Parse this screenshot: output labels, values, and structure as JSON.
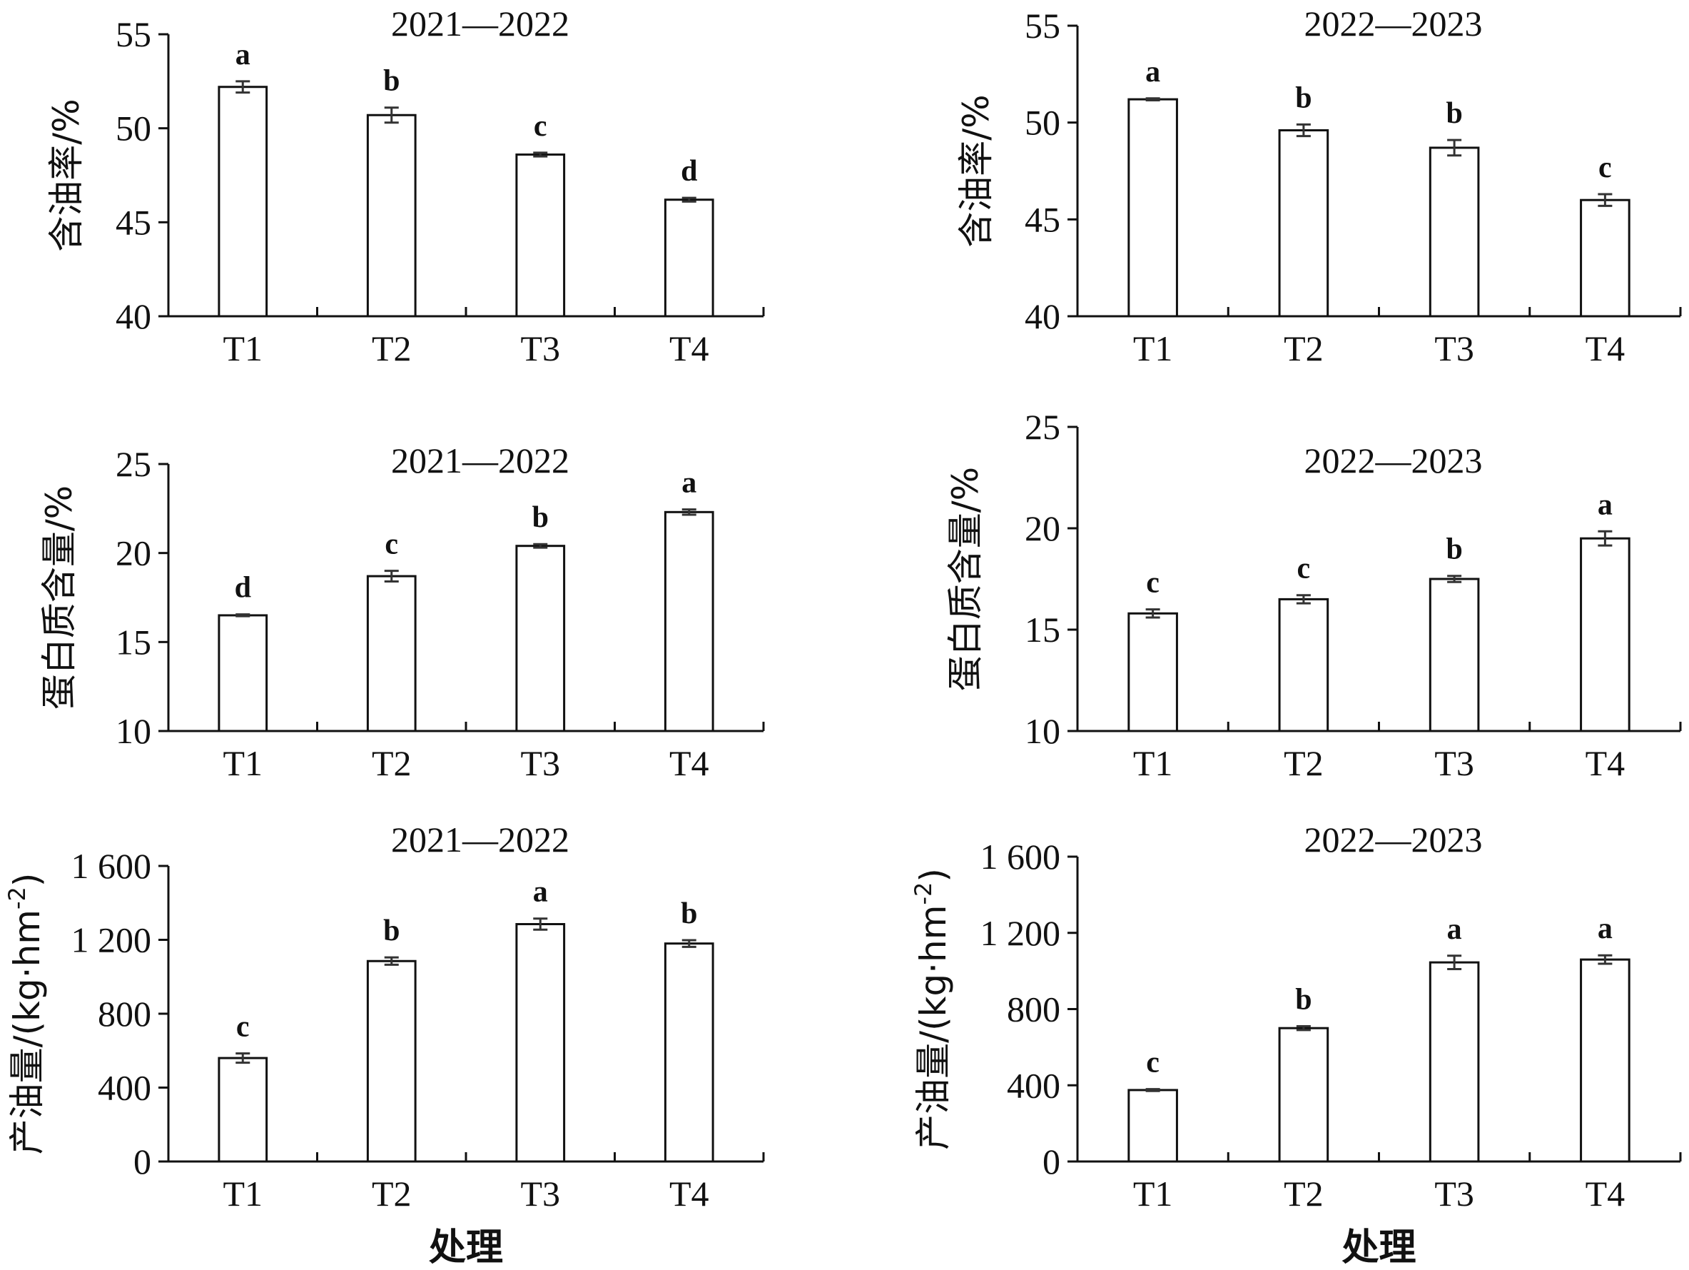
{
  "chart_data": [
    {
      "type": "bar",
      "title": "2021—2022",
      "ylabel": "含油率/%",
      "xlabel": "",
      "categories": [
        "T1",
        "T2",
        "T3",
        "T4"
      ],
      "values": [
        52.2,
        50.7,
        48.6,
        46.2
      ],
      "errors": [
        0.3,
        0.4,
        0.1,
        0.1
      ],
      "letters": [
        "a",
        "b",
        "c",
        "d"
      ],
      "ylim": [
        40,
        55
      ],
      "yticks": [
        40,
        45,
        50,
        55
      ],
      "ytick_labels": [
        "40",
        "45",
        "50",
        "55"
      ]
    },
    {
      "type": "bar",
      "title": "2022—2023",
      "ylabel": "含油率/%",
      "xlabel": "",
      "categories": [
        "T1",
        "T2",
        "T3",
        "T4"
      ],
      "values": [
        51.2,
        49.6,
        48.7,
        46.0
      ],
      "errors": [
        0.05,
        0.3,
        0.4,
        0.3
      ],
      "letters": [
        "a",
        "b",
        "b",
        "c"
      ],
      "ylim": [
        40,
        55
      ],
      "yticks": [
        40,
        45,
        50,
        55
      ],
      "ytick_labels": [
        "40",
        "45",
        "50",
        "55"
      ]
    },
    {
      "type": "bar",
      "title": "2021—2022",
      "ylabel": "蛋白质含量/%",
      "xlabel": "",
      "categories": [
        "T1",
        "T2",
        "T3",
        "T4"
      ],
      "values": [
        16.5,
        18.7,
        20.4,
        22.3
      ],
      "errors": [
        0.05,
        0.3,
        0.1,
        0.15
      ],
      "letters": [
        "d",
        "c",
        "b",
        "a"
      ],
      "ylim": [
        10,
        25
      ],
      "yticks": [
        10,
        15,
        20,
        25
      ],
      "ytick_labels": [
        "10",
        "15",
        "20",
        "25"
      ]
    },
    {
      "type": "bar",
      "title": "2022—2023",
      "ylabel": "蛋白质含量/%",
      "xlabel": "",
      "categories": [
        "T1",
        "T2",
        "T3",
        "T4"
      ],
      "values": [
        15.8,
        16.5,
        17.5,
        19.5
      ],
      "errors": [
        0.2,
        0.2,
        0.15,
        0.35
      ],
      "letters": [
        "c",
        "c",
        "b",
        "a"
      ],
      "ylim": [
        10,
        25
      ],
      "yticks": [
        10,
        15,
        20,
        25
      ],
      "ytick_labels": [
        "10",
        "15",
        "20",
        "25"
      ]
    },
    {
      "type": "bar",
      "title": "2021—2022",
      "ylabel": "产油量/(kg·hm",
      "ylabel_sup": "-2",
      "ylabel_tail": ")",
      "xlabel": "处理",
      "categories": [
        "T1",
        "T2",
        "T3",
        "T4"
      ],
      "values": [
        560,
        1085,
        1285,
        1180
      ],
      "errors": [
        25,
        20,
        30,
        18
      ],
      "letters": [
        "c",
        "b",
        "a",
        "b"
      ],
      "ylim": [
        0,
        1600
      ],
      "yticks": [
        0,
        400,
        800,
        1200,
        1600
      ],
      "ytick_labels": [
        "0",
        "400",
        "800",
        "1 200",
        "1 600"
      ]
    },
    {
      "type": "bar",
      "title": "2022—2023",
      "ylabel": "产油量/(kg·hm",
      "ylabel_sup": "-2",
      "ylabel_tail": ")",
      "xlabel": "处理",
      "categories": [
        "T1",
        "T2",
        "T3",
        "T4"
      ],
      "values": [
        375,
        700,
        1045,
        1060
      ],
      "errors": [
        5,
        10,
        35,
        22
      ],
      "letters": [
        "c",
        "b",
        "a",
        "a"
      ],
      "ylim": [
        0,
        1600
      ],
      "yticks": [
        0,
        400,
        800,
        1200,
        1600
      ],
      "ytick_labels": [
        "0",
        "400",
        "800",
        "1 200",
        "1 600"
      ]
    }
  ]
}
